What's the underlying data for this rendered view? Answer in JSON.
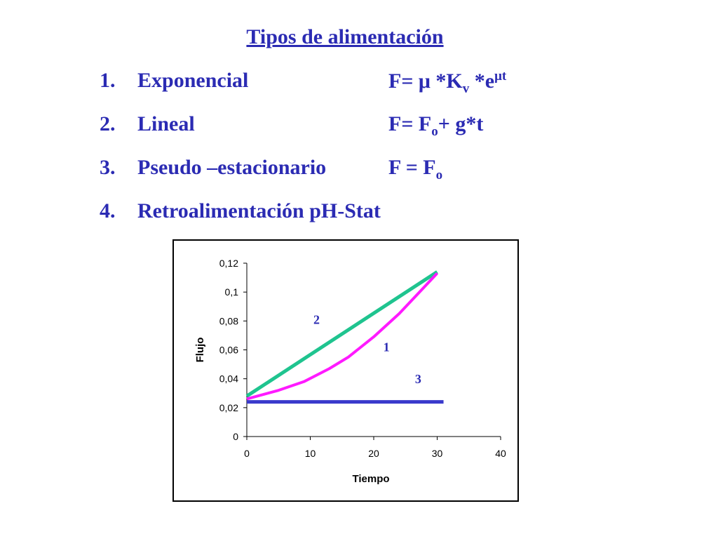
{
  "slide": {
    "title": "Tipos de alimentación",
    "items": [
      {
        "num": "1.",
        "label": "Exponencial",
        "formula_main": "F=  μ *K",
        "formula_sub": "v",
        "formula_mid": " *e",
        "formula_sup": "μt",
        "formula_end": ""
      },
      {
        "num": "2.",
        "label": "Lineal",
        "formula_main": "F= F",
        "formula_sub": "o",
        "formula_mid": "+ g*t",
        "formula_sup": "",
        "formula_end": ""
      },
      {
        "num": "3.",
        "label": "Pseudo –estacionario",
        "formula_main": "F = F",
        "formula_sub": "o",
        "formula_mid": "",
        "formula_sup": "",
        "formula_end": ""
      },
      {
        "num": "4.",
        "label": "Retroalimentación pH-Stat",
        "formula_main": "",
        "formula_sub": "",
        "formula_mid": "",
        "formula_sup": "",
        "formula_end": ""
      }
    ]
  },
  "chart_data": {
    "type": "line",
    "xlabel": "Tiempo",
    "ylabel": "Flujo",
    "xlim": [
      0,
      40
    ],
    "ylim": [
      0,
      0.12
    ],
    "xticks": [
      0,
      10,
      20,
      30,
      40
    ],
    "xtick_labels": [
      "0",
      "10",
      "20",
      "30",
      "40"
    ],
    "yticks": [
      0,
      0.02,
      0.04,
      0.06,
      0.08,
      0.1,
      0.12
    ],
    "ytick_labels": [
      "0",
      "0,02",
      "0,04",
      "0,06",
      "0,08",
      "0,1",
      "0,12"
    ],
    "grid": false,
    "series": [
      {
        "name": "2",
        "color": "#1fc48f",
        "x": [
          0,
          30
        ],
        "y": [
          0.028,
          0.114
        ]
      },
      {
        "name": "1",
        "color": "#ff1aff",
        "x": [
          0,
          5,
          9,
          13,
          16,
          20,
          24,
          27,
          30
        ],
        "y": [
          0.026,
          0.032,
          0.038,
          0.047,
          0.055,
          0.069,
          0.085,
          0.099,
          0.113
        ]
      },
      {
        "name": "3",
        "color": "#3a3acc",
        "x": [
          0,
          31
        ],
        "y": [
          0.024,
          0.024
        ]
      }
    ],
    "curve_labels": [
      {
        "text": "2",
        "x": 11,
        "y": 0.078
      },
      {
        "text": "1",
        "x": 22,
        "y": 0.059
      },
      {
        "text": "3",
        "x": 27,
        "y": 0.037
      }
    ]
  }
}
